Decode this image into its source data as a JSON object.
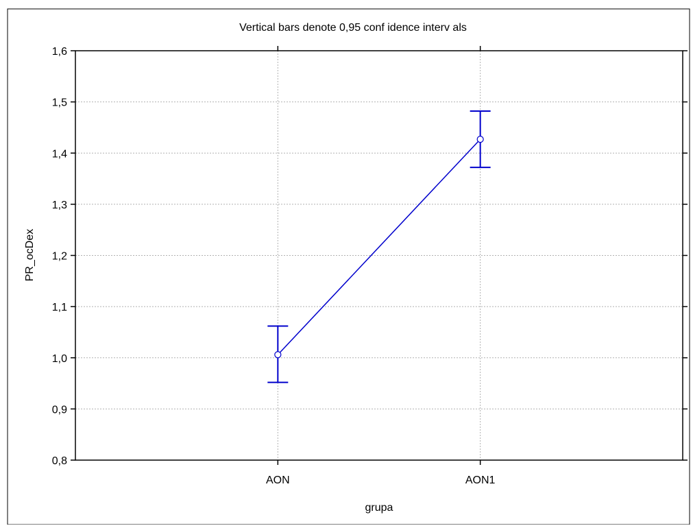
{
  "chart_data": {
    "type": "line",
    "title": "Vertical bars denote 0,95 conf idence interv als",
    "xlabel": "grupa",
    "ylabel": "PR_ocDex",
    "categories": [
      "AON",
      "AON1"
    ],
    "ylim": [
      0.8,
      1.6
    ],
    "yticks": [
      "0,8",
      "0,9",
      "1,0",
      "1,1",
      "1,2",
      "1,3",
      "1,4",
      "1,5",
      "1,6"
    ],
    "grid": true,
    "series": [
      {
        "values": [
          1.006,
          1.427
        ],
        "ci_lower": [
          0.952,
          1.372
        ],
        "ci_upper": [
          1.062,
          1.482
        ]
      }
    ]
  },
  "colors": {
    "series": "#0000CC",
    "grid": "#B0B0B0",
    "axis": "#000000"
  }
}
